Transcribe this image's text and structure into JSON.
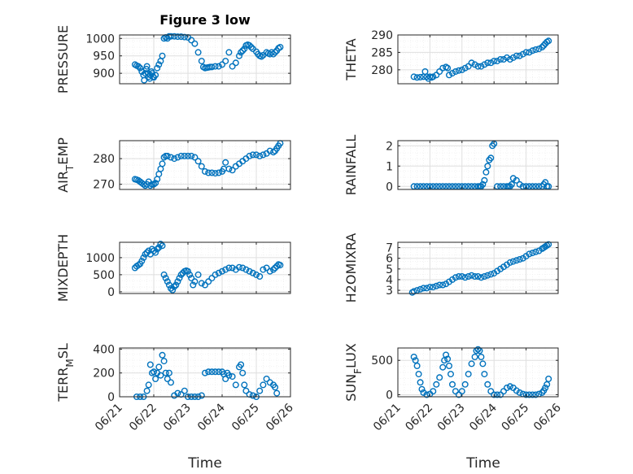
{
  "title": "Figure 3 low",
  "colors": {
    "marker": "#0072BD",
    "axis": "#262626",
    "grid": "#dfdfdf",
    "minor_grid": "#efefef"
  },
  "x_ticks": [
    "06/21",
    "06/22",
    "06/23",
    "06/24",
    "06/25",
    "06/26"
  ],
  "x_label": "Time",
  "chart_data": [
    {
      "type": "scatter",
      "ylabel": "PRESSURE",
      "xlim": [
        0,
        5
      ],
      "ylim": [
        870,
        1010
      ],
      "yticks": [
        900,
        950,
        1000
      ],
      "ytick_labels": [
        "900",
        "950",
        "1000"
      ],
      "grid": "on",
      "title": "Figure 3 low",
      "x": [
        0.45,
        0.5,
        0.55,
        0.6,
        0.65,
        0.7,
        0.72,
        0.75,
        0.78,
        0.8,
        0.83,
        0.85,
        0.88,
        0.9,
        0.93,
        0.95,
        0.98,
        1.0,
        1.05,
        1.1,
        1.15,
        1.2,
        1.25,
        1.3,
        1.35,
        1.4,
        1.45,
        1.5,
        1.6,
        1.7,
        1.8,
        1.9,
        2.0,
        2.1,
        2.2,
        2.3,
        2.4,
        2.45,
        2.5,
        2.55,
        2.6,
        2.65,
        2.7,
        2.8,
        2.9,
        3.0,
        3.1,
        3.2,
        3.3,
        3.4,
        3.5,
        3.55,
        3.6,
        3.65,
        3.7,
        3.75,
        3.8,
        3.85,
        3.9,
        4.0,
        4.05,
        4.1,
        4.15,
        4.2,
        4.3,
        4.35,
        4.4,
        4.45,
        4.5,
        4.55,
        4.6,
        4.65,
        4.7
      ],
      "y": [
        925,
        922,
        920,
        915,
        905,
        895,
        880,
        900,
        912,
        920,
        900,
        890,
        885,
        895,
        905,
        900,
        890,
        888,
        895,
        915,
        925,
        935,
        950,
        1000,
        1003,
        1000,
        1006,
        1006,
        1006,
        1005,
        1005,
        1004,
        1003,
        995,
        985,
        960,
        935,
        918,
        915,
        916,
        917,
        918,
        918,
        920,
        920,
        925,
        935,
        960,
        920,
        930,
        950,
        960,
        965,
        970,
        980,
        982,
        980,
        975,
        970,
        962,
        955,
        950,
        948,
        952,
        960,
        957,
        955,
        960,
        955,
        960,
        965,
        972,
        975
      ]
    },
    {
      "type": "scatter",
      "ylabel": "THETA",
      "xlim": [
        0,
        5
      ],
      "ylim": [
        276,
        290
      ],
      "yticks": [
        280,
        285,
        290
      ],
      "ytick_labels": [
        "280",
        "285",
        "290"
      ],
      "grid": "on",
      "x": [
        0.5,
        0.6,
        0.7,
        0.8,
        0.85,
        0.9,
        0.95,
        1.0,
        1.05,
        1.1,
        1.2,
        1.3,
        1.4,
        1.5,
        1.55,
        1.6,
        1.7,
        1.8,
        1.9,
        2.0,
        2.1,
        2.2,
        2.3,
        2.4,
        2.5,
        2.6,
        2.7,
        2.8,
        2.9,
        3.0,
        3.1,
        3.2,
        3.3,
        3.4,
        3.5,
        3.6,
        3.7,
        3.8,
        3.9,
        4.0,
        4.1,
        4.2,
        4.3,
        4.4,
        4.5,
        4.55,
        4.6,
        4.65,
        4.7
      ],
      "y": [
        278,
        277.8,
        277.9,
        278,
        279.5,
        278,
        277.5,
        278,
        277.8,
        278,
        278.5,
        279.5,
        280.5,
        280.8,
        280.5,
        278.5,
        279,
        279.5,
        279.8,
        280,
        280.5,
        281,
        282,
        281.5,
        281,
        281,
        281.5,
        282,
        282,
        282.5,
        282.5,
        283,
        283,
        283.5,
        283,
        283.5,
        284,
        284,
        284.5,
        285,
        285,
        285.5,
        285.8,
        286,
        286.5,
        287,
        287.5,
        288,
        288.3
      ]
    },
    {
      "type": "scatter",
      "ylabel": "AIR_TEMP",
      "ylabel_main": "AIR",
      "ylabel_sub": "T",
      "ylabel_rest": "EMP",
      "xlim": [
        0,
        5
      ],
      "ylim": [
        268,
        287
      ],
      "yticks": [
        270,
        280
      ],
      "ytick_labels": [
        "270",
        "280"
      ],
      "grid": "on",
      "x": [
        0.45,
        0.5,
        0.55,
        0.6,
        0.65,
        0.7,
        0.75,
        0.8,
        0.85,
        0.9,
        0.95,
        1.0,
        1.05,
        1.1,
        1.15,
        1.2,
        1.25,
        1.3,
        1.35,
        1.4,
        1.5,
        1.6,
        1.7,
        1.8,
        1.9,
        2.0,
        2.1,
        2.2,
        2.3,
        2.4,
        2.5,
        2.6,
        2.7,
        2.8,
        2.9,
        3.0,
        3.05,
        3.1,
        3.2,
        3.3,
        3.4,
        3.5,
        3.6,
        3.7,
        3.8,
        3.9,
        4.0,
        4.1,
        4.2,
        4.3,
        4.4,
        4.5,
        4.55,
        4.6,
        4.65,
        4.7
      ],
      "y": [
        272,
        271.8,
        271.5,
        271,
        270.5,
        270,
        269.5,
        270,
        271,
        269.5,
        270,
        270,
        270.5,
        272,
        274,
        276,
        278,
        280.5,
        281,
        281,
        280.5,
        280,
        280.5,
        281,
        281,
        281,
        281,
        280.5,
        279,
        277,
        275,
        274.5,
        274.5,
        274.3,
        274.5,
        275,
        276,
        278.5,
        276,
        275.5,
        277,
        278,
        279,
        280,
        281,
        281.5,
        281.5,
        281,
        281.5,
        282,
        283,
        282.5,
        283,
        284,
        285,
        286
      ]
    },
    {
      "type": "scatter",
      "ylabel": "RAINFALL",
      "xlim": [
        0,
        5
      ],
      "ylim": [
        -0.15,
        2.25
      ],
      "yticks": [
        0,
        1,
        2
      ],
      "ytick_labels": [
        "0",
        "1",
        "2"
      ],
      "grid": "on",
      "x": [
        0.5,
        0.6,
        0.7,
        0.8,
        0.9,
        1.0,
        1.1,
        1.2,
        1.3,
        1.4,
        1.5,
        1.6,
        1.7,
        1.8,
        1.9,
        2.0,
        2.1,
        2.2,
        2.3,
        2.4,
        2.5,
        2.55,
        2.6,
        2.65,
        2.7,
        2.75,
        2.8,
        2.85,
        2.9,
        2.95,
        3.0,
        3.1,
        3.2,
        3.3,
        3.4,
        3.45,
        3.5,
        3.55,
        3.6,
        3.7,
        3.8,
        3.9,
        4.0,
        4.1,
        4.2,
        4.3,
        4.4,
        4.5,
        4.55,
        4.6,
        4.65,
        4.7
      ],
      "y": [
        0,
        0,
        0,
        0,
        0,
        0,
        0,
        0,
        0,
        0,
        0,
        0,
        0,
        0,
        0,
        0,
        0,
        0,
        0,
        0,
        0,
        0,
        0,
        0.1,
        0.3,
        0.7,
        1.0,
        1.3,
        1.4,
        2.0,
        2.1,
        0,
        0,
        0,
        0,
        0,
        0,
        0.1,
        0.4,
        0.3,
        0.1,
        0,
        0,
        0,
        0,
        0,
        0,
        0,
        0.1,
        0.2,
        0,
        0
      ]
    },
    {
      "type": "scatter",
      "ylabel": "MIXDEPTH",
      "xlim": [
        0,
        5
      ],
      "ylim": [
        -50,
        1450
      ],
      "yticks": [
        0,
        500,
        1000
      ],
      "ytick_labels": [
        "0",
        "500",
        "1000"
      ],
      "grid": "on",
      "x": [
        0.45,
        0.5,
        0.55,
        0.6,
        0.65,
        0.7,
        0.75,
        0.8,
        0.85,
        0.9,
        0.95,
        1.0,
        1.05,
        1.1,
        1.15,
        1.2,
        1.25,
        1.3,
        1.35,
        1.4,
        1.45,
        1.5,
        1.55,
        1.6,
        1.65,
        1.7,
        1.75,
        1.8,
        1.85,
        1.9,
        1.95,
        2.0,
        2.05,
        2.1,
        2.15,
        2.2,
        2.3,
        2.4,
        2.5,
        2.6,
        2.7,
        2.8,
        2.9,
        3.0,
        3.1,
        3.2,
        3.3,
        3.4,
        3.5,
        3.6,
        3.7,
        3.8,
        3.9,
        4.0,
        4.1,
        4.2,
        4.3,
        4.4,
        4.5,
        4.55,
        4.6,
        4.65,
        4.7
      ],
      "y": [
        700,
        750,
        780,
        820,
        900,
        1000,
        1100,
        1150,
        1200,
        1100,
        1250,
        1200,
        1150,
        1250,
        1300,
        1400,
        1350,
        500,
        400,
        300,
        200,
        100,
        50,
        150,
        200,
        300,
        400,
        500,
        550,
        600,
        620,
        600,
        500,
        400,
        200,
        300,
        500,
        250,
        200,
        300,
        400,
        500,
        550,
        600,
        650,
        700,
        700,
        650,
        720,
        700,
        650,
        600,
        550,
        500,
        450,
        650,
        700,
        600,
        650,
        700,
        750,
        800,
        780
      ]
    },
    {
      "type": "scatter",
      "ylabel": "H2OMIXRA",
      "xlim": [
        0,
        5
      ],
      "ylim": [
        2.7,
        7.5
      ],
      "yticks": [
        3,
        4,
        5,
        6,
        7
      ],
      "ytick_labels": [
        "3",
        "4",
        "5",
        "6",
        "7"
      ],
      "grid": "on",
      "x": [
        0.45,
        0.5,
        0.6,
        0.7,
        0.8,
        0.9,
        1.0,
        1.1,
        1.2,
        1.3,
        1.4,
        1.5,
        1.6,
        1.7,
        1.8,
        1.9,
        2.0,
        2.1,
        2.2,
        2.3,
        2.4,
        2.5,
        2.6,
        2.7,
        2.8,
        2.9,
        3.0,
        3.1,
        3.2,
        3.3,
        3.4,
        3.5,
        3.6,
        3.7,
        3.8,
        3.9,
        4.0,
        4.1,
        4.2,
        4.3,
        4.4,
        4.5,
        4.55,
        4.6,
        4.65,
        4.7
      ],
      "y": [
        2.8,
        2.9,
        3.0,
        3.1,
        3.2,
        3.2,
        3.3,
        3.3,
        3.4,
        3.5,
        3.5,
        3.6,
        3.8,
        4.0,
        4.2,
        4.3,
        4.3,
        4.2,
        4.3,
        4.4,
        4.3,
        4.3,
        4.2,
        4.3,
        4.4,
        4.5,
        4.6,
        4.8,
        5.0,
        5.2,
        5.4,
        5.6,
        5.7,
        5.8,
        5.9,
        6.0,
        6.2,
        6.4,
        6.5,
        6.6,
        6.7,
        6.9,
        7.0,
        7.1,
        7.2,
        7.3
      ]
    },
    {
      "type": "scatter",
      "ylabel": "TERR_MSL",
      "ylabel_main": "TERR",
      "ylabel_sub": "M",
      "ylabel_rest": "SL",
      "xlim": [
        0,
        5
      ],
      "ylim": [
        0,
        410
      ],
      "yticks": [
        0,
        200,
        400
      ],
      "ytick_labels": [
        "0",
        "200",
        "400"
      ],
      "grid": "on",
      "x": [
        0.5,
        0.6,
        0.7,
        0.8,
        0.85,
        0.9,
        0.95,
        1.0,
        1.05,
        1.1,
        1.15,
        1.2,
        1.25,
        1.3,
        1.35,
        1.4,
        1.45,
        1.5,
        1.6,
        1.7,
        1.8,
        1.9,
        2.0,
        2.1,
        2.2,
        2.3,
        2.4,
        2.5,
        2.6,
        2.7,
        2.8,
        2.9,
        3.0,
        3.05,
        3.1,
        3.15,
        3.2,
        3.3,
        3.4,
        3.5,
        3.55,
        3.6,
        3.65,
        3.7,
        3.8,
        3.9,
        4.0,
        4.1,
        4.2,
        4.3,
        4.4,
        4.5,
        4.55,
        4.6
      ],
      "y": [
        0,
        0,
        0,
        50,
        100,
        270,
        200,
        210,
        150,
        200,
        250,
        180,
        350,
        300,
        200,
        150,
        200,
        120,
        10,
        30,
        20,
        50,
        0,
        0,
        0,
        0,
        10,
        200,
        210,
        210,
        210,
        210,
        210,
        190,
        150,
        200,
        180,
        170,
        100,
        250,
        270,
        200,
        100,
        50,
        20,
        10,
        0,
        50,
        100,
        150,
        120,
        100,
        80,
        30
      ]
    },
    {
      "type": "scatter",
      "ylabel": "SUN_FLUX",
      "ylabel_main": "SUN",
      "ylabel_sub": "F",
      "ylabel_rest": "LUX",
      "xlim": [
        0,
        5
      ],
      "ylim": [
        -30,
        680
      ],
      "yticks": [
        0,
        500
      ],
      "ytick_labels": [
        "0",
        "500"
      ],
      "grid": "on",
      "x": [
        0.5,
        0.55,
        0.6,
        0.65,
        0.7,
        0.75,
        0.8,
        0.9,
        1.0,
        1.1,
        1.2,
        1.3,
        1.4,
        1.45,
        1.5,
        1.55,
        1.6,
        1.65,
        1.7,
        1.8,
        1.9,
        2.0,
        2.1,
        2.2,
        2.3,
        2.4,
        2.45,
        2.5,
        2.55,
        2.6,
        2.65,
        2.7,
        2.8,
        2.9,
        3.0,
        3.1,
        3.2,
        3.3,
        3.4,
        3.5,
        3.6,
        3.7,
        3.8,
        3.9,
        4.0,
        4.1,
        4.2,
        4.3,
        4.4,
        4.5,
        4.55,
        4.6,
        4.65,
        4.7
      ],
      "y": [
        550,
        500,
        420,
        300,
        180,
        80,
        30,
        0,
        10,
        50,
        150,
        250,
        400,
        500,
        580,
        520,
        420,
        300,
        150,
        50,
        0,
        50,
        150,
        300,
        450,
        550,
        640,
        660,
        640,
        550,
        450,
        300,
        150,
        50,
        0,
        0,
        0,
        50,
        100,
        120,
        100,
        60,
        30,
        10,
        0,
        0,
        0,
        0,
        10,
        30,
        60,
        100,
        150,
        230
      ]
    }
  ]
}
